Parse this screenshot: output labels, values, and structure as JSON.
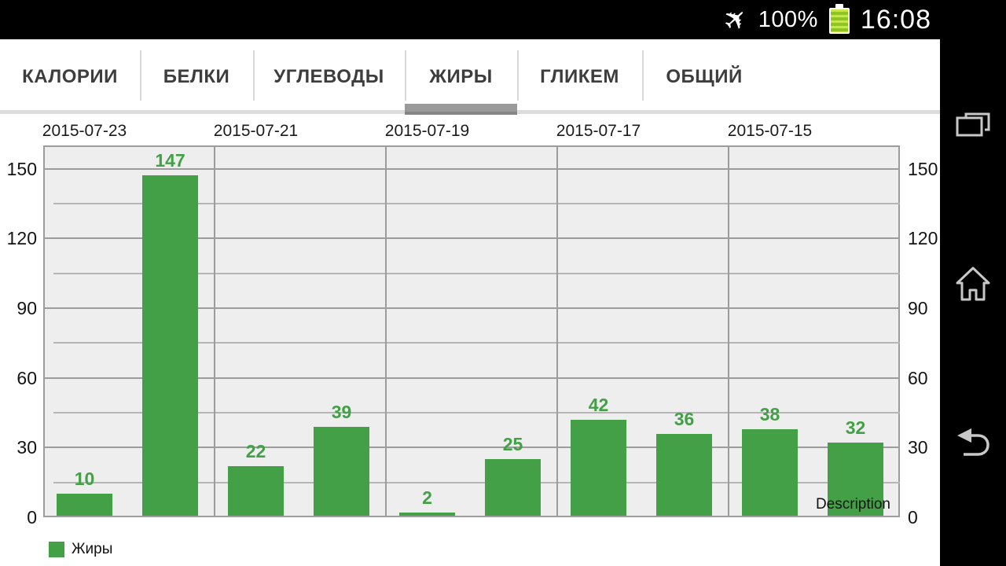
{
  "status_bar": {
    "airplane_icon": "✈",
    "battery_percent": "100%",
    "battery_color": "#8dc522",
    "time": "16:08"
  },
  "tabs": {
    "items": [
      {
        "label": "КАЛОРИИ"
      },
      {
        "label": "БЕЛКИ"
      },
      {
        "label": "УГЛЕВОДЫ"
      },
      {
        "label": "ЖИРЫ"
      },
      {
        "label": "ГЛИКЕМ"
      },
      {
        "label": "ОБЩИЙ"
      }
    ],
    "selected_index": 3
  },
  "nav_bar": {
    "icons": [
      "recents",
      "home",
      "back"
    ]
  },
  "chart_data": {
    "type": "bar",
    "description_label": "Description",
    "categories": [
      "2015-07-23",
      "2015-07-21",
      "2015-07-19",
      "2015-07-17",
      "2015-07-15"
    ],
    "series": [
      {
        "name": "Жиры",
        "color": "#43a047",
        "values_per_category": [
          [
            10,
            147
          ],
          [
            22,
            39
          ],
          [
            2,
            25
          ],
          [
            42,
            36
          ],
          [
            38,
            32
          ]
        ]
      }
    ],
    "legend": {
      "label": "Жиры",
      "color": "#43a047",
      "position": "bottom-left"
    },
    "ylim": [
      0,
      160
    ],
    "y_major_ticks": [
      0,
      30,
      60,
      90,
      120,
      150
    ],
    "y_minor_ticks": [
      15,
      45,
      75,
      105,
      135
    ],
    "axis_label_sides": "both",
    "grid": true,
    "value_labels": true
  }
}
